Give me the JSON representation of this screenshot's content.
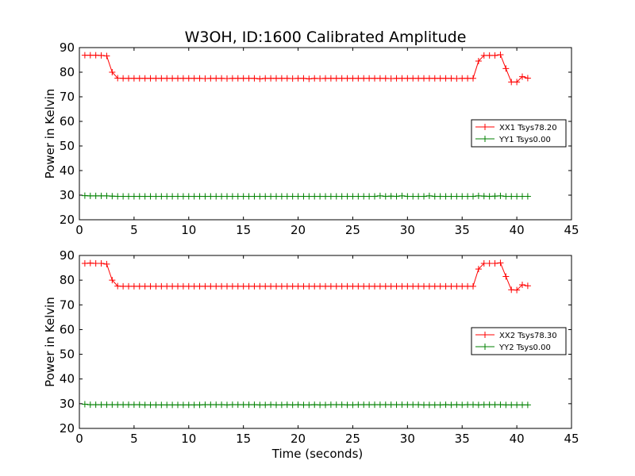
{
  "title": "W3OH, ID:1600 Calibrated Amplitude",
  "colors": {
    "xx": "#ff0000",
    "yy": "#008000"
  },
  "chart_data": [
    {
      "type": "line",
      "ylabel": "Power in Kelvin",
      "xlabel": "",
      "xlim": [
        0,
        45
      ],
      "ylim": [
        20,
        90
      ],
      "xticks": [
        "0",
        "5",
        "10",
        "15",
        "20",
        "25",
        "30",
        "35",
        "40",
        "45"
      ],
      "yticks": [
        "20",
        "30",
        "40",
        "50",
        "60",
        "70",
        "80",
        "90"
      ],
      "legend_position": "right",
      "series": [
        {
          "name": "XX1 Tsys78.20",
          "color": "#ff0000",
          "x": [
            0.5,
            1,
            1.5,
            2,
            2.5,
            3,
            3.5,
            4,
            4.5,
            5,
            5.5,
            6,
            6.5,
            7,
            7.5,
            8,
            8.5,
            9,
            9.5,
            10,
            10.5,
            11,
            11.5,
            12,
            12.5,
            13,
            13.5,
            14,
            14.5,
            15,
            15.5,
            16,
            16.5,
            17,
            17.5,
            18,
            18.5,
            19,
            19.5,
            20,
            20.5,
            21,
            21.5,
            22,
            22.5,
            23,
            23.5,
            24,
            24.5,
            25,
            25.5,
            26,
            26.5,
            27,
            27.5,
            28,
            28.5,
            29,
            29.5,
            30,
            30.5,
            31,
            31.5,
            32,
            32.5,
            33,
            33.5,
            34,
            34.5,
            35,
            35.5,
            36,
            36.5,
            37,
            37.5,
            38,
            38.5,
            39,
            39.5,
            40,
            40.5,
            41
          ],
          "y": [
            86.9,
            86.9,
            86.9,
            86.8,
            86.6,
            80,
            77.6,
            77.5,
            77.5,
            77.5,
            77.5,
            77.5,
            77.5,
            77.5,
            77.5,
            77.5,
            77.5,
            77.5,
            77.5,
            77.5,
            77.5,
            77.5,
            77.4,
            77.5,
            77.5,
            77.5,
            77.4,
            77.5,
            77.5,
            77.5,
            77.5,
            77.5,
            77.3,
            77.5,
            77.5,
            77.5,
            77.5,
            77.5,
            77.4,
            77.5,
            77.5,
            77.3,
            77.5,
            77.4,
            77.5,
            77.5,
            77.5,
            77.5,
            77.5,
            77.5,
            77.5,
            77.5,
            77.5,
            77.5,
            77.5,
            77.5,
            77.4,
            77.5,
            77.5,
            77.5,
            77.5,
            77.5,
            77.5,
            77.5,
            77.5,
            77.5,
            77.5,
            77.5,
            77.4,
            77.5,
            77.5,
            77.5,
            84.5,
            86.8,
            86.8,
            86.8,
            87.1,
            81.5,
            76,
            76,
            78.2,
            77.6
          ]
        },
        {
          "name": "YY1 Tsys0.00",
          "color": "#008000",
          "x": [
            0.5,
            1,
            1.5,
            2,
            2.5,
            3,
            3.5,
            4,
            4.5,
            5,
            5.5,
            6,
            6.5,
            7,
            7.5,
            8,
            8.5,
            9,
            9.5,
            10,
            10.5,
            11,
            11.5,
            12,
            12.5,
            13,
            13.5,
            14,
            14.5,
            15,
            15.5,
            16,
            16.5,
            17,
            17.5,
            18,
            18.5,
            19,
            19.5,
            20,
            20.5,
            21,
            21.5,
            22,
            22.5,
            23,
            23.5,
            24,
            24.5,
            25,
            25.5,
            26,
            26.5,
            27,
            27.5,
            28,
            28.5,
            29,
            29.5,
            30,
            30.5,
            31,
            31.5,
            32,
            32.5,
            33,
            33.5,
            34,
            34.5,
            35,
            35.5,
            36,
            36.5,
            37,
            37.5,
            38,
            38.5,
            39,
            39.5,
            40,
            40.5,
            41
          ],
          "y": [
            29.8,
            29.7,
            29.7,
            29.7,
            29.7,
            29.6,
            29.5,
            29.5,
            29.5,
            29.5,
            29.5,
            29.5,
            29.5,
            29.5,
            29.5,
            29.5,
            29.5,
            29.5,
            29.5,
            29.5,
            29.5,
            29.5,
            29.5,
            29.5,
            29.5,
            29.5,
            29.5,
            29.5,
            29.5,
            29.5,
            29.5,
            29.5,
            29.5,
            29.5,
            29.5,
            29.5,
            29.5,
            29.5,
            29.5,
            29.5,
            29.5,
            29.5,
            29.5,
            29.5,
            29.5,
            29.5,
            29.5,
            29.5,
            29.5,
            29.5,
            29.5,
            29.5,
            29.5,
            29.5,
            29.7,
            29.5,
            29.6,
            29.5,
            29.7,
            29.5,
            29.5,
            29.5,
            29.5,
            29.7,
            29.5,
            29.5,
            29.5,
            29.5,
            29.5,
            29.5,
            29.5,
            29.5,
            29.7,
            29.6,
            29.5,
            29.6,
            29.7,
            29.5,
            29.5,
            29.5,
            29.5,
            29.5
          ]
        }
      ]
    },
    {
      "type": "line",
      "ylabel": "Power in Kelvin",
      "xlabel": "Time (seconds)",
      "xlim": [
        0,
        45
      ],
      "ylim": [
        20,
        90
      ],
      "xticks": [
        "0",
        "5",
        "10",
        "15",
        "20",
        "25",
        "30",
        "35",
        "40",
        "45"
      ],
      "yticks": [
        "20",
        "30",
        "40",
        "50",
        "60",
        "70",
        "80",
        "90"
      ],
      "legend_position": "right",
      "series": [
        {
          "name": "XX2 Tsys78.30",
          "color": "#ff0000",
          "x": [
            0.5,
            1,
            1.5,
            2,
            2.5,
            3,
            3.5,
            4,
            4.5,
            5,
            5.5,
            6,
            6.5,
            7,
            7.5,
            8,
            8.5,
            9,
            9.5,
            10,
            10.5,
            11,
            11.5,
            12,
            12.5,
            13,
            13.5,
            14,
            14.5,
            15,
            15.5,
            16,
            16.5,
            17,
            17.5,
            18,
            18.5,
            19,
            19.5,
            20,
            20.5,
            21,
            21.5,
            22,
            22.5,
            23,
            23.5,
            24,
            24.5,
            25,
            25.5,
            26,
            26.5,
            27,
            27.5,
            28,
            28.5,
            29,
            29.5,
            30,
            30.5,
            31,
            31.5,
            32,
            32.5,
            33,
            33.5,
            34,
            34.5,
            35,
            35.5,
            36,
            36.5,
            37,
            37.5,
            38,
            38.5,
            39,
            39.5,
            40,
            40.5,
            41
          ],
          "y": [
            86.8,
            86.9,
            86.8,
            86.8,
            86.5,
            80,
            77.6,
            77.5,
            77.5,
            77.5,
            77.5,
            77.5,
            77.5,
            77.5,
            77.5,
            77.5,
            77.5,
            77.5,
            77.5,
            77.5,
            77.5,
            77.5,
            77.5,
            77.5,
            77.5,
            77.5,
            77.5,
            77.5,
            77.5,
            77.5,
            77.5,
            77.5,
            77.5,
            77.5,
            77.5,
            77.5,
            77.5,
            77.5,
            77.5,
            77.5,
            77.5,
            77.5,
            77.5,
            77.5,
            77.5,
            77.5,
            77.5,
            77.5,
            77.5,
            77.5,
            77.5,
            77.5,
            77.5,
            77.5,
            77.5,
            77.5,
            77.5,
            77.5,
            77.5,
            77.5,
            77.5,
            77.5,
            77.5,
            77.5,
            77.5,
            77.5,
            77.5,
            77.5,
            77.5,
            77.5,
            77.5,
            77.5,
            84.5,
            86.8,
            86.8,
            86.8,
            87,
            81.5,
            76.1,
            76,
            78.1,
            77.7
          ]
        },
        {
          "name": "YY2 Tsys0.00",
          "color": "#008000",
          "x": [
            0.5,
            1,
            1.5,
            2,
            2.5,
            3,
            3.5,
            4,
            4.5,
            5,
            5.5,
            6,
            6.5,
            7,
            7.5,
            8,
            8.5,
            9,
            9.5,
            10,
            10.5,
            11,
            11.5,
            12,
            12.5,
            13,
            13.5,
            14,
            14.5,
            15,
            15.5,
            16,
            16.5,
            17,
            17.5,
            18,
            18.5,
            19,
            19.5,
            20,
            20.5,
            21,
            21.5,
            22,
            22.5,
            23,
            23.5,
            24,
            24.5,
            25,
            25.5,
            26,
            26.5,
            27,
            27.5,
            28,
            28.5,
            29,
            29.5,
            30,
            30.5,
            31,
            31.5,
            32,
            32.5,
            33,
            33.5,
            34,
            34.5,
            35,
            35.5,
            36,
            36.5,
            37,
            37.5,
            38,
            38.5,
            39,
            39.5,
            40,
            40.5,
            41
          ],
          "y": [
            29.8,
            29.6,
            29.6,
            29.6,
            29.6,
            29.6,
            29.6,
            29.6,
            29.6,
            29.6,
            29.6,
            29.5,
            29.5,
            29.5,
            29.5,
            29.5,
            29.5,
            29.5,
            29.5,
            29.5,
            29.5,
            29.5,
            29.6,
            29.6,
            29.6,
            29.6,
            29.5,
            29.6,
            29.6,
            29.6,
            29.6,
            29.6,
            29.5,
            29.5,
            29.6,
            29.5,
            29.5,
            29.6,
            29.5,
            29.6,
            29.5,
            29.5,
            29.6,
            29.5,
            29.5,
            29.6,
            29.6,
            29.6,
            29.5,
            29.5,
            29.6,
            29.6,
            29.6,
            29.6,
            29.6,
            29.6,
            29.6,
            29.6,
            29.6,
            29.6,
            29.6,
            29.6,
            29.5,
            29.5,
            29.5,
            29.5,
            29.6,
            29.5,
            29.6,
            29.5,
            29.6,
            29.6,
            29.5,
            29.6,
            29.6,
            29.6,
            29.6,
            29.5,
            29.5,
            29.5,
            29.5,
            29.5
          ]
        }
      ]
    }
  ]
}
